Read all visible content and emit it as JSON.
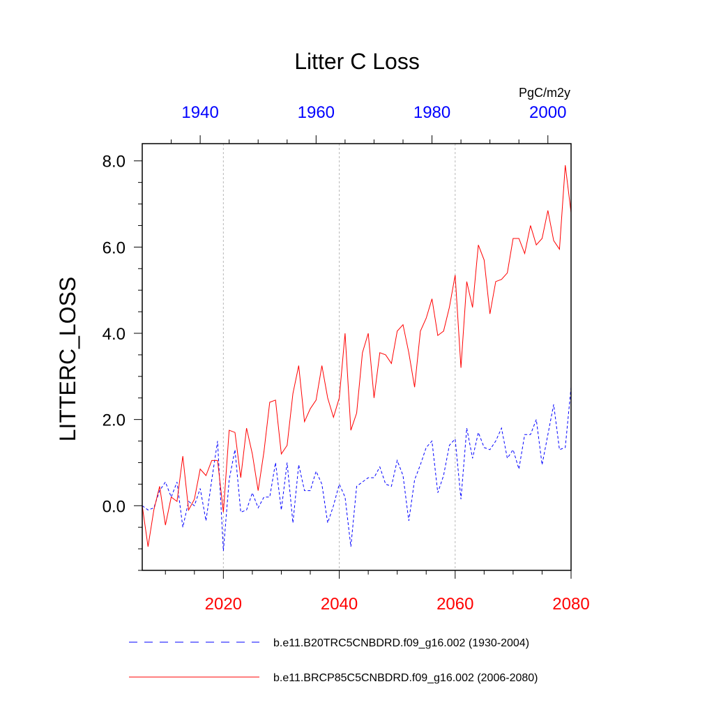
{
  "chart_data": {
    "type": "line",
    "title": "Litter C Loss",
    "units": "PgC/m2y",
    "ylabel": "LITTERC_LOSS",
    "ylim": [
      -1.5,
      8.4
    ],
    "yticks": [
      0,
      2,
      4,
      6,
      8
    ],
    "yticklabels": [
      "0.0",
      "2.0",
      "4.0",
      "6.0",
      "8.0"
    ],
    "ygrid": false,
    "xgrid_at_bottom_years": [
      2020,
      2040,
      2060
    ],
    "bottom_axis": {
      "color": "#ff0000",
      "range": [
        2006,
        2080
      ],
      "ticks": [
        2020,
        2040,
        2060,
        2080
      ],
      "ticklabels": [
        "2020",
        "2040",
        "2060",
        "2080"
      ]
    },
    "top_axis": {
      "color": "#0000ff",
      "range": [
        1930,
        2004
      ],
      "ticks": [
        1940,
        1960,
        1980,
        2000
      ],
      "ticklabels": [
        "1940",
        "1960",
        "1980",
        "2000"
      ]
    },
    "legend_position": "bottom",
    "series": [
      {
        "name": "b.e11.B20TRC5CNBDRD.f09_g16.002 (1930-2004)",
        "color": "#0000ff",
        "style": "dashed",
        "x_start": 1930,
        "values": [
          0.0,
          -0.1,
          -0.05,
          0.35,
          0.55,
          0.2,
          0.55,
          -0.5,
          0.1,
          0.0,
          0.4,
          -0.35,
          0.6,
          1.5,
          -1.05,
          0.6,
          1.3,
          -0.15,
          -0.1,
          0.3,
          -0.05,
          0.2,
          0.2,
          1.0,
          -0.1,
          1.0,
          -0.4,
          0.95,
          0.35,
          0.35,
          0.8,
          0.5,
          -0.4,
          0.0,
          0.5,
          0.2,
          -0.95,
          0.45,
          0.55,
          0.65,
          0.65,
          0.9,
          0.5,
          0.45,
          1.05,
          0.7,
          -0.35,
          0.6,
          0.95,
          1.35,
          1.5,
          0.3,
          0.7,
          1.4,
          1.55,
          0.15,
          1.8,
          1.1,
          1.7,
          1.35,
          1.3,
          1.5,
          1.8,
          1.1,
          1.3,
          0.85,
          1.65,
          1.65,
          2.0,
          0.95,
          1.65,
          2.35,
          1.3,
          1.35,
          2.75
        ]
      },
      {
        "name": "b.e11.BRCP85C5CNBDRD.f09_g16.002 (2006-2080)",
        "color": "#ff0000",
        "style": "solid",
        "x_start": 2006,
        "values": [
          0.0,
          -0.95,
          -0.1,
          0.45,
          -0.45,
          0.2,
          0.1,
          1.15,
          -0.1,
          0.15,
          0.85,
          0.7,
          1.05,
          1.05,
          -0.15,
          1.75,
          1.7,
          0.65,
          1.8,
          1.2,
          0.35,
          1.25,
          2.4,
          2.45,
          1.2,
          1.4,
          2.6,
          3.25,
          1.95,
          2.25,
          2.45,
          3.25,
          2.5,
          2.05,
          2.5,
          4.0,
          1.75,
          2.15,
          3.55,
          4.0,
          2.5,
          3.55,
          3.5,
          3.3,
          4.05,
          4.2,
          3.55,
          2.75,
          4.05,
          4.35,
          4.8,
          3.95,
          4.05,
          4.6,
          5.35,
          3.2,
          5.2,
          4.6,
          6.05,
          5.7,
          4.45,
          5.2,
          5.25,
          5.4,
          6.2,
          6.2,
          5.85,
          6.5,
          6.05,
          6.2,
          6.85,
          6.15,
          5.95,
          7.9,
          6.8
        ]
      }
    ]
  }
}
